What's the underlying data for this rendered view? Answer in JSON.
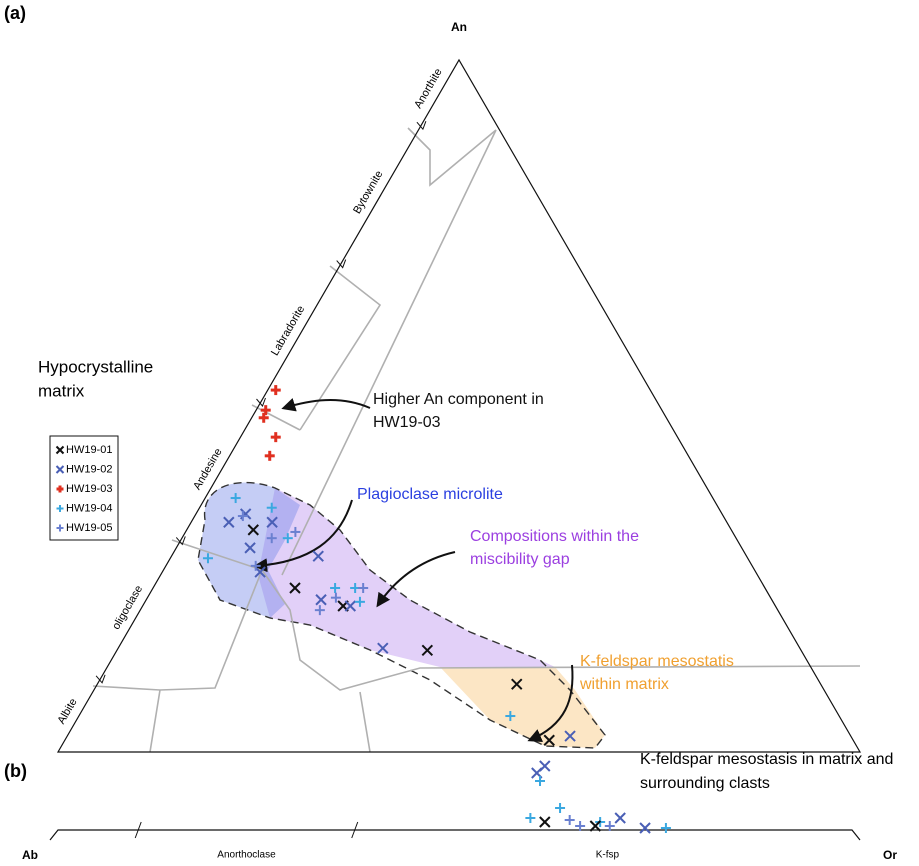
{
  "chart_data": [
    {
      "type": "ternary",
      "label": "(a)",
      "vertices": {
        "top": "An",
        "left": "Ab",
        "right": "Or"
      },
      "edge_ticks": [
        10,
        30,
        50,
        70,
        90
      ],
      "edge_labels": [
        "Albite",
        "oligoclase",
        "Andesine",
        "Labradorite",
        "Bytownite",
        "Anorthite"
      ],
      "legend_title": [
        "Hypocrystalline",
        "matrix"
      ],
      "series": [
        {
          "name": "HW19-01",
          "color": "#111111",
          "marker": "x",
          "an": [
            32.1,
            23.7,
            21.1,
            14.7,
            9.8,
            1.7
          ],
          "or": [
            8.3,
            17.7,
            25.0,
            38.7,
            52.3,
            60.4
          ]
        },
        {
          "name": "HW19-02",
          "color": "#4a5fb5",
          "marker": "x",
          "an": [
            33.2,
            34.4,
            33.2,
            29.5,
            26.0,
            28.3,
            22.0,
            21.1,
            15.0,
            2.3
          ],
          "or": [
            4.7,
            6.2,
            10.1,
            9.2,
            12.2,
            18.3,
            21.8,
            25.9,
            33.0,
            62.7
          ]
        },
        {
          "name": "HW19-03",
          "color": "#e03020",
          "marker": "bold-plus",
          "an": [
            52.3,
            49.4,
            48.3,
            45.5,
            42.8
          ],
          "or": [
            1.0,
            1.2,
            1.5,
            4.4,
            5.0
          ]
        },
        {
          "name": "HW19-04",
          "color": "#3aa8e0",
          "marker": "plus",
          "an": [
            36.7,
            28.0,
            35.3,
            30.9,
            23.7,
            23.7,
            21.7,
            5.2
          ],
          "or": [
            3.8,
            4.7,
            9.0,
            13.2,
            22.7,
            25.2,
            26.8,
            53.8
          ]
        },
        {
          "name": "HW19-05",
          "color": "#6a80d0",
          "marker": "plus",
          "an": [
            34.1,
            30.9,
            26.9,
            31.8,
            22.3,
            23.7,
            20.5
          ],
          "or": [
            6.0,
            11.2,
            11.2,
            13.7,
            23.5,
            26.2,
            22.4
          ]
        }
      ],
      "annotations": [
        {
          "lines": [
            "Higher An component in",
            "HW19-03"
          ],
          "color": "#111111"
        },
        {
          "lines": [
            "Plagioclase microlite"
          ],
          "color": "#2a3fe0"
        },
        {
          "lines": [
            "Compositions within the",
            "miscibility gap"
          ],
          "color": "#9b3fe0"
        },
        {
          "lines": [
            "K-feldspar mesostatis",
            "within matrix"
          ],
          "color": "#f0a030"
        }
      ]
    },
    {
      "type": "strip",
      "label": "(b)",
      "ends": [
        "Ab",
        "Or"
      ],
      "segment_ticks": [
        10,
        37
      ],
      "segment_labels": [
        "Anorthoclase",
        "K-fsp"
      ],
      "title": [
        "K-feldspar mesostasis in matrix and",
        "surrounding clasts"
      ],
      "series": [
        {
          "color": "#4a5fb5",
          "marker": "x",
          "or": [
            59.7,
            60.7,
            70.1,
            73.2
          ],
          "an": [
            5.5,
            6.2,
            1.0,
            0
          ]
        },
        {
          "color": "#3aa8e0",
          "marker": "plus",
          "or": [
            60.1,
            58.9,
            62.6,
            67.6,
            75.8
          ],
          "an": [
            4.7,
            1.0,
            2.0,
            0.6,
            0
          ]
        },
        {
          "color": "#111111",
          "marker": "x",
          "or": [
            60.7,
            67.0
          ],
          "an": [
            0.6,
            0.2
          ]
        },
        {
          "color": "#6a80d0",
          "marker": "plus",
          "or": [
            63.8,
            65.1,
            68.8
          ],
          "an": [
            0.8,
            0.2,
            0.2
          ]
        }
      ]
    }
  ]
}
